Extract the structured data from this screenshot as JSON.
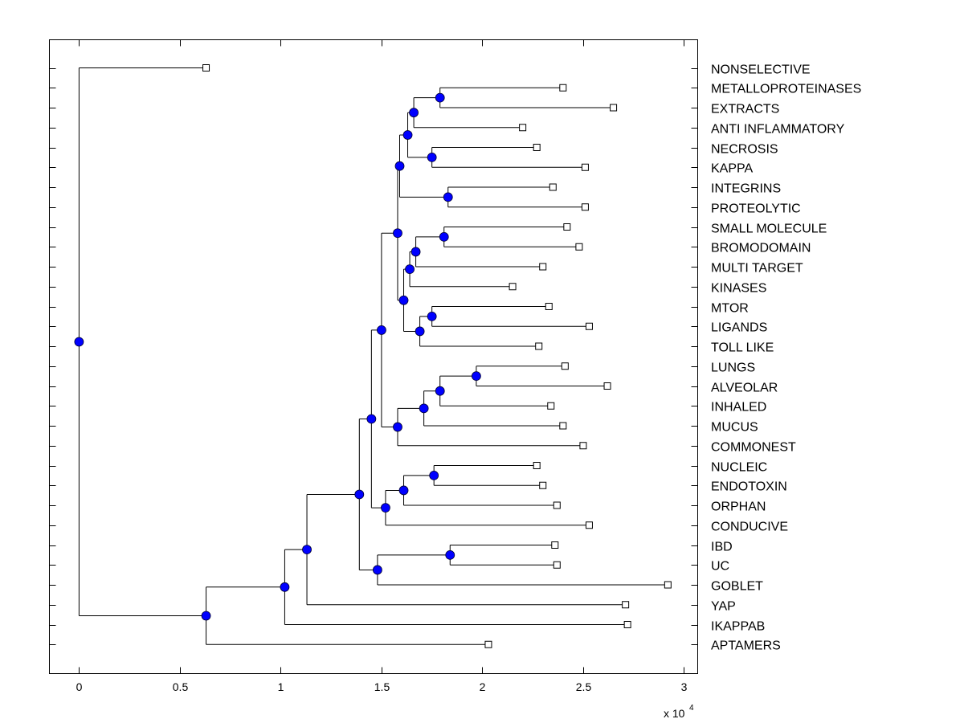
{
  "chart_data": {
    "type": "dendrogram",
    "title": "",
    "xlabel": "",
    "ylabel": "",
    "x_multiplier_label": "x 10",
    "x_multiplier_exponent": "4",
    "xlim": [
      -0.147,
      3.068
    ],
    "xticks": [
      0,
      0.5,
      1,
      1.5,
      2,
      2.5,
      3
    ],
    "xtick_labels": [
      "0",
      "0.5",
      "1",
      "1.5",
      "2",
      "2.5",
      "3"
    ],
    "grid": false,
    "node_color": "#0000ff",
    "leaf_marker": "square-hollow",
    "leaf_order": [
      "NONSELECTIVE",
      "METALLOPROTEINASES",
      "EXTRACTS",
      "ANTI INFLAMMATORY",
      "NECROSIS",
      "KAPPA",
      "INTEGRINS",
      "PROTEOLYTIC",
      "SMALL MOLECULE",
      "BROMODOMAIN",
      "MULTI TARGET",
      "KINASES",
      "MTOR",
      "LIGANDS",
      "TOLL LIKE",
      "LUNGS",
      "ALVEOLAR",
      "INHALED",
      "MUCUS",
      "COMMONEST",
      "NUCLEIC",
      "ENDOTOXIN",
      "ORPHAN",
      "CONDUCIVE",
      "IBD",
      "UC",
      "GOBLET",
      "YAP",
      "IKAPPAB",
      "APTAMERS"
    ],
    "tree": {
      "h": 0,
      "children": [
        {
          "leaf": "NONSELECTIVE",
          "h": 0.63
        },
        {
          "h": 0.63,
          "children": [
            {
              "h": 1.02,
              "children": [
                {
                  "h": 1.13,
                  "children": [
                    {
                      "h": 1.39,
                      "children": [
                        {
                          "h": 1.45,
                          "children": [
                            {
                              "h": 1.5,
                              "children": [
                                {
                                  "h": 1.58,
                                  "children": [
                                    {
                                      "h": 1.59,
                                      "children": [
                                        {
                                          "h": 1.63,
                                          "children": [
                                            {
                                              "h": 1.66,
                                              "children": [
                                                {
                                                  "h": 1.79,
                                                  "children": [
                                                    {
                                                      "leaf": "METALLOPROTEINASES",
                                                      "h": 2.4
                                                    },
                                                    {
                                                      "leaf": "EXTRACTS",
                                                      "h": 2.65
                                                    }
                                                  ]
                                                },
                                                {
                                                  "leaf": "ANTI INFLAMMATORY",
                                                  "h": 2.2
                                                }
                                              ]
                                            },
                                            {
                                              "h": 1.75,
                                              "children": [
                                                {
                                                  "leaf": "NECROSIS",
                                                  "h": 2.27
                                                },
                                                {
                                                  "leaf": "KAPPA",
                                                  "h": 2.51
                                                }
                                              ]
                                            }
                                          ]
                                        },
                                        {
                                          "h": 1.83,
                                          "children": [
                                            {
                                              "leaf": "INTEGRINS",
                                              "h": 2.35
                                            },
                                            {
                                              "leaf": "PROTEOLYTIC",
                                              "h": 2.51
                                            }
                                          ]
                                        }
                                      ]
                                    },
                                    {
                                      "h": 1.61,
                                      "children": [
                                        {
                                          "h": 1.64,
                                          "children": [
                                            {
                                              "h": 1.67,
                                              "children": [
                                                {
                                                  "h": 1.81,
                                                  "children": [
                                                    {
                                                      "leaf": "SMALL MOLECULE",
                                                      "h": 2.42
                                                    },
                                                    {
                                                      "leaf": "BROMODOMAIN",
                                                      "h": 2.48
                                                    }
                                                  ]
                                                },
                                                {
                                                  "leaf": "MULTI TARGET",
                                                  "h": 2.3
                                                }
                                              ]
                                            },
                                            {
                                              "leaf": "KINASES",
                                              "h": 2.15
                                            }
                                          ]
                                        },
                                        {
                                          "h": 1.69,
                                          "children": [
                                            {
                                              "h": 1.75,
                                              "children": [
                                                {
                                                  "leaf": "MTOR",
                                                  "h": 2.33
                                                },
                                                {
                                                  "leaf": "LIGANDS",
                                                  "h": 2.53
                                                }
                                              ]
                                            },
                                            {
                                              "leaf": "TOLL LIKE",
                                              "h": 2.28
                                            }
                                          ]
                                        }
                                      ]
                                    }
                                  ]
                                },
                                {
                                  "h": 1.58,
                                  "children": [
                                    {
                                      "h": 1.71,
                                      "children": [
                                        {
                                          "h": 1.79,
                                          "children": [
                                            {
                                              "h": 1.97,
                                              "children": [
                                                {
                                                  "leaf": "LUNGS",
                                                  "h": 2.41
                                                },
                                                {
                                                  "leaf": "ALVEOLAR",
                                                  "h": 2.62
                                                }
                                              ]
                                            },
                                            {
                                              "leaf": "INHALED",
                                              "h": 2.34
                                            }
                                          ]
                                        },
                                        {
                                          "leaf": "MUCUS",
                                          "h": 2.4
                                        }
                                      ]
                                    },
                                    {
                                      "leaf": "COMMONEST",
                                      "h": 2.5
                                    }
                                  ]
                                }
                              ]
                            },
                            {
                              "h": 1.52,
                              "children": [
                                {
                                  "h": 1.61,
                                  "children": [
                                    {
                                      "h": 1.76,
                                      "children": [
                                        {
                                          "leaf": "NUCLEIC",
                                          "h": 2.27
                                        },
                                        {
                                          "leaf": "ENDOTOXIN",
                                          "h": 2.3
                                        }
                                      ]
                                    },
                                    {
                                      "leaf": "ORPHAN",
                                      "h": 2.37
                                    }
                                  ]
                                },
                                {
                                  "leaf": "CONDUCIVE",
                                  "h": 2.53
                                }
                              ]
                            }
                          ]
                        },
                        {
                          "h": 1.48,
                          "children": [
                            {
                              "h": 1.84,
                              "children": [
                                {
                                  "leaf": "IBD",
                                  "h": 2.36
                                },
                                {
                                  "leaf": "UC",
                                  "h": 2.37
                                }
                              ]
                            },
                            {
                              "leaf": "GOBLET",
                              "h": 2.92
                            }
                          ]
                        }
                      ]
                    },
                    {
                      "leaf": "YAP",
                      "h": 2.71
                    }
                  ]
                },
                {
                  "leaf": "IKAPPAB",
                  "h": 2.72
                }
              ]
            },
            {
              "leaf": "APTAMERS",
              "h": 2.03
            }
          ]
        }
      ]
    }
  }
}
